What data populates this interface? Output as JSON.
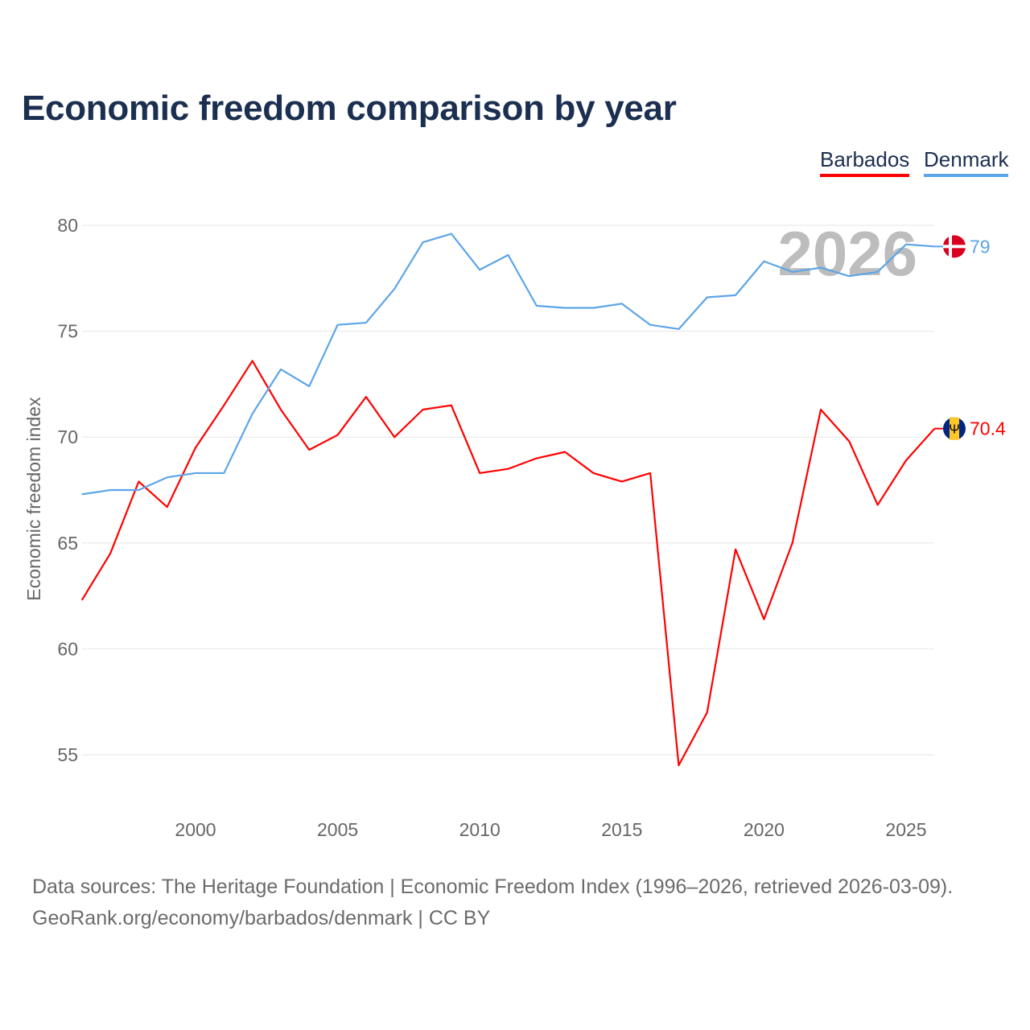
{
  "title": "Economic freedom comparison by year",
  "legend": [
    "Barbados",
    "Denmark"
  ],
  "watermark_year": "2026",
  "footer": {
    "line1": "Data sources: The Heritage Foundation | Economic Freedom Index (1996–2026, retrieved 2026-03-09).",
    "line2": "GeoRank.org/economy/barbados/denmark | CC BY"
  },
  "chart_data": {
    "type": "line",
    "title": "Economic freedom comparison by year",
    "xlabel": "",
    "ylabel": "Economic freedom index",
    "xlim": [
      1996,
      2026
    ],
    "ylim": [
      52.5,
      80.5
    ],
    "grid": true,
    "legend_position": "top-right",
    "xticks": [
      2000,
      2005,
      2010,
      2015,
      2020,
      2025
    ],
    "yticks": [
      55,
      60,
      65,
      70,
      75,
      80
    ],
    "x": [
      1996,
      1997,
      1998,
      1999,
      2000,
      2001,
      2002,
      2003,
      2004,
      2005,
      2006,
      2007,
      2008,
      2009,
      2010,
      2011,
      2012,
      2013,
      2014,
      2015,
      2016,
      2017,
      2018,
      2019,
      2020,
      2021,
      2022,
      2023,
      2024,
      2025,
      2026
    ],
    "series": [
      {
        "name": "Barbados",
        "color": "#ff0000",
        "end_label": "70.4",
        "values": [
          62.3,
          64.5,
          67.9,
          66.7,
          69.5,
          71.5,
          73.6,
          71.3,
          69.4,
          70.1,
          71.9,
          70.0,
          71.3,
          71.5,
          68.3,
          68.5,
          69.0,
          69.3,
          68.3,
          67.9,
          68.3,
          54.5,
          57.0,
          64.7,
          61.4,
          65.0,
          71.3,
          69.8,
          66.8,
          68.9,
          70.4
        ]
      },
      {
        "name": "Denmark",
        "color": "#5ca5e8",
        "end_label": "79",
        "values": [
          67.3,
          67.5,
          67.5,
          68.1,
          68.3,
          68.3,
          71.1,
          73.2,
          72.4,
          75.3,
          75.4,
          77.0,
          79.2,
          79.6,
          77.9,
          78.6,
          76.2,
          76.1,
          76.1,
          76.3,
          75.3,
          75.1,
          76.6,
          76.7,
          78.3,
          77.8,
          78.0,
          77.6,
          77.8,
          79.1,
          79.0
        ]
      }
    ]
  }
}
